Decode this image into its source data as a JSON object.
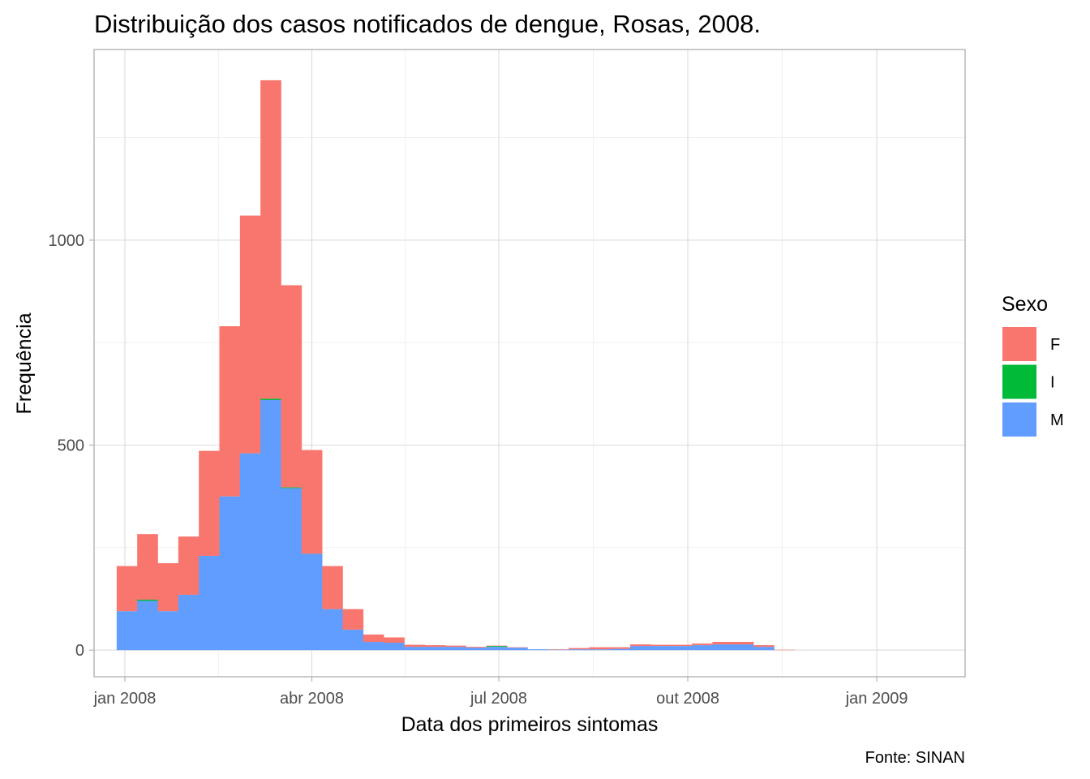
{
  "chart_data": {
    "type": "bar",
    "stacked": true,
    "title": "Distribuição dos casos notificados de dengue, Rosas, 2008.",
    "xlabel": "Data dos primeiros sintomas",
    "ylabel": "Frequência",
    "caption": "Fonte: SINAN",
    "x_tick_labels": [
      "jan 2008",
      "abr 2008",
      "jul 2008",
      "out 2008",
      "jan 2009"
    ],
    "x_tick_dates": [
      "2008-01-01",
      "2008-04-01",
      "2008-07-01",
      "2008-10-01",
      "2009-01-01"
    ],
    "y_ticks": [
      0,
      500,
      1000
    ],
    "ylim": [
      -65,
      1465
    ],
    "xlim": [
      "2007-12-17",
      "2009-02-13"
    ],
    "bin_width_days": 10,
    "bin_start_dates": [
      "2007-12-28",
      "2008-01-07",
      "2008-01-17",
      "2008-01-27",
      "2008-02-06",
      "2008-02-16",
      "2008-02-26",
      "2008-03-07",
      "2008-03-17",
      "2008-03-27",
      "2008-04-06",
      "2008-04-16",
      "2008-04-26",
      "2008-05-06",
      "2008-05-16",
      "2008-05-26",
      "2008-06-05",
      "2008-06-15",
      "2008-06-25",
      "2008-07-05",
      "2008-07-15",
      "2008-07-25",
      "2008-08-04",
      "2008-08-14",
      "2008-08-24",
      "2008-09-03",
      "2008-09-13",
      "2008-09-23",
      "2008-10-03",
      "2008-10-13",
      "2008-10-23",
      "2008-11-02",
      "2008-11-12",
      "2008-11-22",
      "2008-12-02",
      "2008-12-12",
      "2008-12-22",
      "2009-01-01"
    ],
    "series": [
      {
        "name": "M",
        "color": "#619CFF",
        "values": [
          95,
          120,
          95,
          135,
          230,
          375,
          480,
          610,
          395,
          235,
          100,
          50,
          20,
          18,
          8,
          8,
          8,
          6,
          8,
          6,
          2,
          1,
          2,
          2,
          3,
          10,
          10,
          10,
          12,
          14,
          14,
          8,
          0,
          0,
          0,
          0,
          0,
          0
        ]
      },
      {
        "name": "I",
        "color": "#00BA38",
        "values": [
          0,
          3,
          0,
          0,
          0,
          0,
          0,
          3,
          2,
          0,
          0,
          0,
          0,
          0,
          0,
          0,
          0,
          0,
          2,
          0,
          0,
          0,
          0,
          0,
          0,
          0,
          0,
          0,
          0,
          0,
          0,
          0,
          0,
          0,
          0,
          0,
          0,
          0
        ]
      },
      {
        "name": "F",
        "color": "#F8766D",
        "values": [
          110,
          160,
          117,
          142,
          256,
          415,
          580,
          777,
          493,
          253,
          105,
          50,
          18,
          13,
          5,
          4,
          3,
          2,
          1,
          1,
          0,
          1,
          3,
          5,
          4,
          4,
          3,
          3,
          4,
          6,
          6,
          4,
          1,
          0,
          0,
          0,
          0,
          0
        ]
      }
    ],
    "legend": {
      "title": "Sexo",
      "position": "right",
      "entries": [
        "F",
        "I",
        "M"
      ]
    },
    "grid": true
  }
}
